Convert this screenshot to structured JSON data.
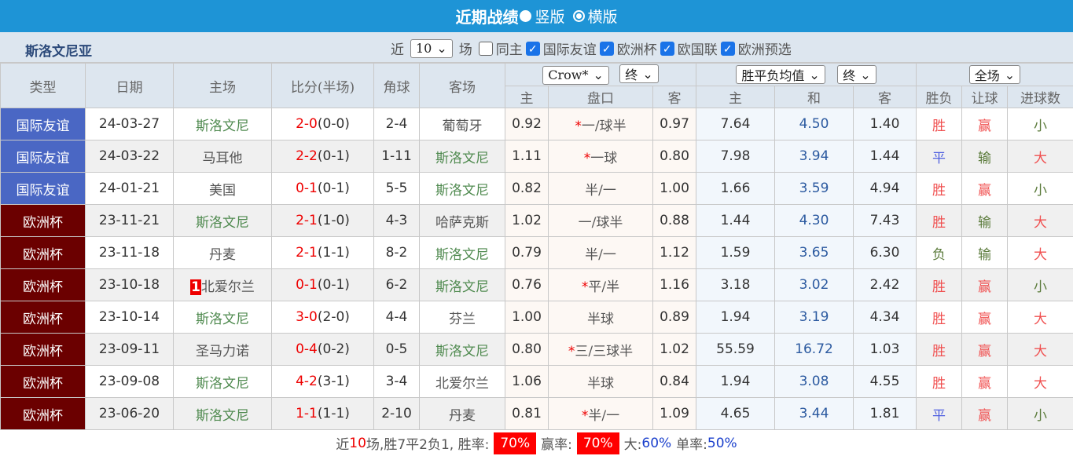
{
  "title": "近期战绩",
  "view_options": [
    "竖版",
    "横版"
  ],
  "team": "斯洛文尼亚",
  "filter": {
    "near_label": "近",
    "count": "10",
    "games_label": "场",
    "same_home": "同主",
    "competitions": [
      "国际友谊",
      "欧洲杯",
      "欧国联",
      "欧洲预选"
    ]
  },
  "header": {
    "type": "类型",
    "date": "日期",
    "home": "主场",
    "score": "比分(半场)",
    "corner": "角球",
    "away": "客场",
    "company": "Crow*",
    "stage1": "终",
    "odds_type": "胜平负均值",
    "stage2": "终",
    "period": "全场",
    "sub": [
      "主",
      "盘口",
      "客",
      "主",
      "和",
      "客",
      "胜负",
      "让球",
      "进球数"
    ]
  },
  "colors": {
    "friendly": "#4a67c4",
    "euro": "#6b0000",
    "header": "#1e94d6"
  },
  "rows": [
    [
      "国际友谊",
      "24-03-27",
      "斯洛文尼",
      "2-0",
      "(0-0)",
      "2-4",
      "葡萄牙",
      "0.92",
      "*",
      "一/球半",
      "0.97",
      "7.64",
      "4.50",
      "1.40",
      "胜",
      "赢",
      "小",
      ""
    ],
    [
      "国际友谊",
      "24-03-22",
      "马耳他",
      "2-2",
      "(0-1)",
      "1-11",
      "斯洛文尼",
      "1.11",
      "*",
      "一球",
      "0.80",
      "7.98",
      "3.94",
      "1.44",
      "平",
      "输",
      "大",
      ""
    ],
    [
      "国际友谊",
      "24-01-21",
      "美国",
      "0-1",
      "(0-1)",
      "5-5",
      "斯洛文尼",
      "0.82",
      "",
      "半/一",
      "1.00",
      "1.66",
      "3.59",
      "4.94",
      "胜",
      "赢",
      "小",
      ""
    ],
    [
      "欧洲杯",
      "23-11-21",
      "斯洛文尼",
      "2-1",
      "(1-0)",
      "4-3",
      "哈萨克斯",
      "1.02",
      "",
      "一/球半",
      "0.88",
      "1.44",
      "4.30",
      "7.43",
      "胜",
      "输",
      "大",
      ""
    ],
    [
      "欧洲杯",
      "23-11-18",
      "丹麦",
      "2-1",
      "(1-1)",
      "8-2",
      "斯洛文尼",
      "0.79",
      "",
      "半/一",
      "1.12",
      "1.59",
      "3.65",
      "6.30",
      "负",
      "输",
      "大",
      ""
    ],
    [
      "欧洲杯",
      "23-10-18",
      "北爱尔兰",
      "0-1",
      "(0-1)",
      "6-2",
      "斯洛文尼",
      "0.76",
      "*",
      "平/半",
      "1.16",
      "3.18",
      "3.02",
      "2.42",
      "胜",
      "赢",
      "小",
      "1"
    ],
    [
      "欧洲杯",
      "23-10-14",
      "斯洛文尼",
      "3-0",
      "(2-0)",
      "4-4",
      "芬兰",
      "1.00",
      "",
      "半球",
      "0.89",
      "1.94",
      "3.19",
      "4.34",
      "胜",
      "赢",
      "大",
      ""
    ],
    [
      "欧洲杯",
      "23-09-11",
      "圣马力诺",
      "0-4",
      "(0-2)",
      "0-5",
      "斯洛文尼",
      "0.80",
      "*",
      "三/三球半",
      "1.02",
      "55.59",
      "16.72",
      "1.03",
      "胜",
      "赢",
      "大",
      ""
    ],
    [
      "欧洲杯",
      "23-09-08",
      "斯洛文尼",
      "4-2",
      "(3-1)",
      "3-4",
      "北爱尔兰",
      "1.06",
      "",
      "半球",
      "0.84",
      "1.94",
      "3.08",
      "4.55",
      "胜",
      "赢",
      "大",
      ""
    ],
    [
      "欧洲杯",
      "23-06-20",
      "斯洛文尼",
      "1-1",
      "(1-1)",
      "2-10",
      "丹麦",
      "0.81",
      "*",
      "半/一",
      "1.09",
      "4.65",
      "3.44",
      "1.81",
      "平",
      "赢",
      "小",
      ""
    ]
  ],
  "summary": {
    "p1": "近",
    "n": "10",
    "p2": "场,胜7平2负1, 胜率:",
    "win_rate": "70%",
    "p3": "赢率:",
    "cover_rate": "70%",
    "p4": "大:",
    "over": "60%",
    "p5": "单率:",
    "odd": "50%"
  }
}
